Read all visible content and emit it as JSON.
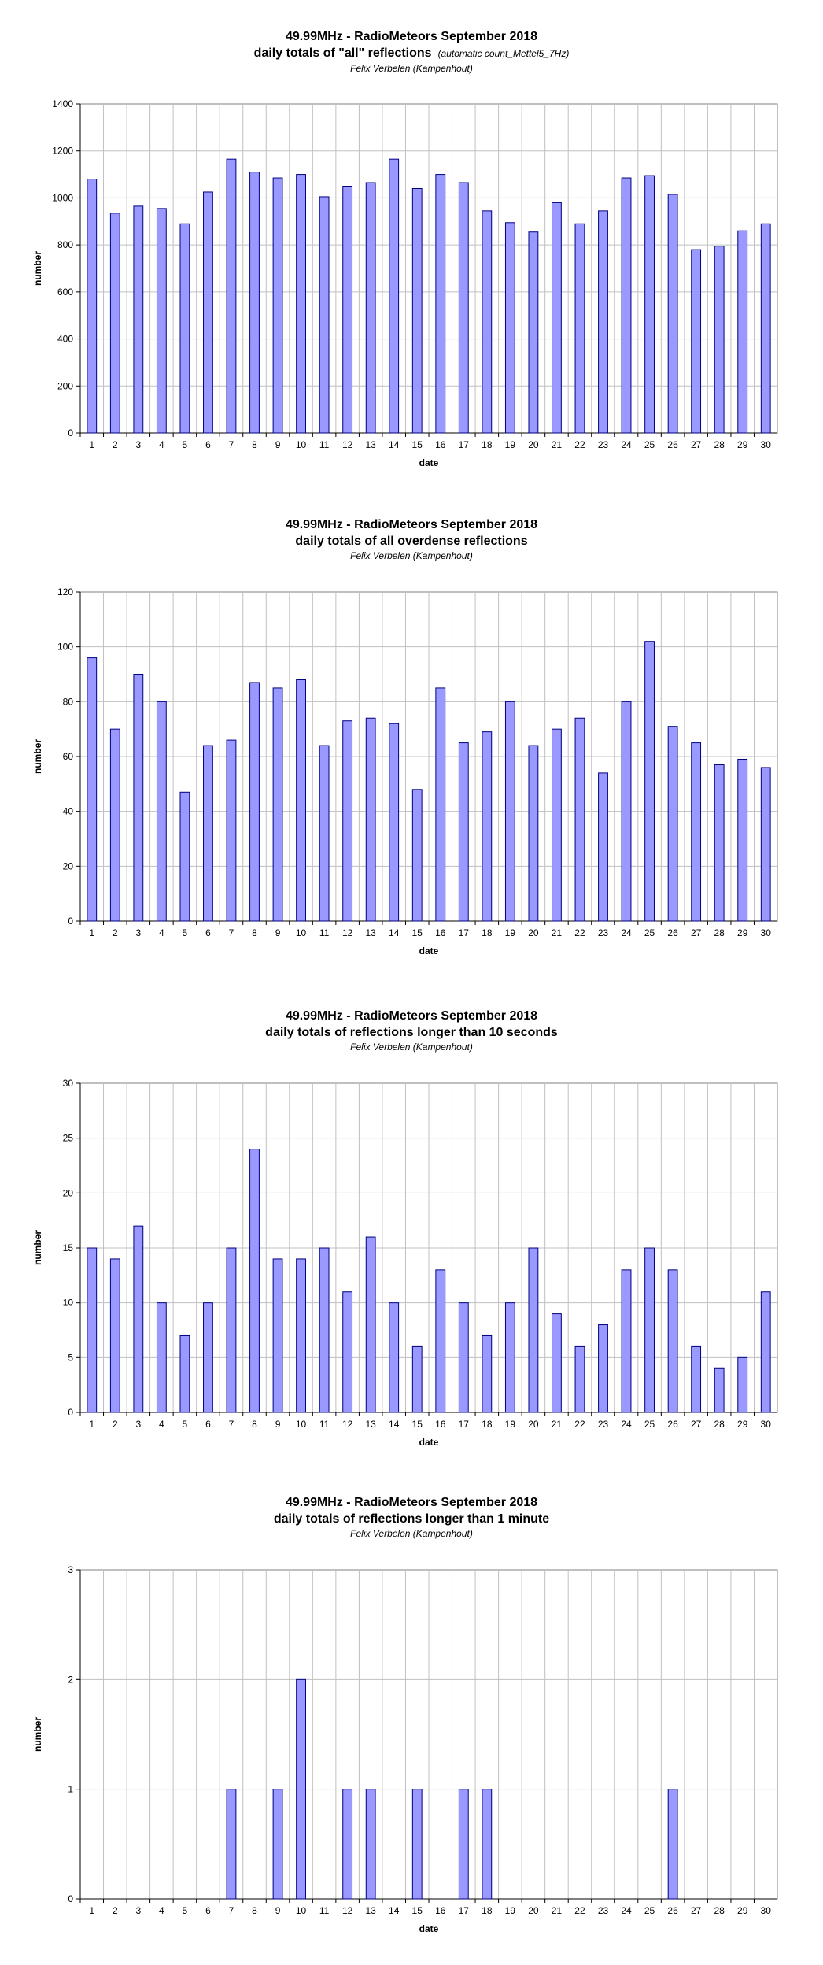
{
  "chart_data": [
    {
      "type": "bar",
      "title": "49.99MHz - RadioMeteors September 2018",
      "subtitle": "daily totals of \"all\" reflections",
      "subtitle_note": "(automatic count_Mettel5_7Hz)",
      "author": "Felix Verbelen (Kampenhout)",
      "xlabel": "date",
      "ylabel": "number",
      "ylim": [
        0,
        1400
      ],
      "yticks": [
        0,
        200,
        400,
        600,
        800,
        1000,
        1200,
        1400
      ],
      "grid": true,
      "categories": [
        "1",
        "2",
        "3",
        "4",
        "5",
        "6",
        "7",
        "8",
        "9",
        "10",
        "11",
        "12",
        "13",
        "14",
        "15",
        "16",
        "17",
        "18",
        "19",
        "20",
        "21",
        "22",
        "23",
        "24",
        "25",
        "26",
        "27",
        "28",
        "29",
        "30"
      ],
      "values": [
        1080,
        935,
        965,
        955,
        890,
        1025,
        1165,
        1110,
        1085,
        1100,
        1005,
        1050,
        1065,
        1165,
        1040,
        1100,
        1065,
        945,
        895,
        855,
        980,
        890,
        945,
        1085,
        1095,
        1015,
        780,
        795,
        860,
        890
      ]
    },
    {
      "type": "bar",
      "title": "49.99MHz - RadioMeteors September 2018",
      "subtitle": "daily totals of all overdense reflections",
      "subtitle_note": "",
      "author": "Felix Verbelen (Kampenhout)",
      "xlabel": "date",
      "ylabel": "number",
      "ylim": [
        0,
        120
      ],
      "yticks": [
        0,
        20,
        40,
        60,
        80,
        100,
        120
      ],
      "grid": true,
      "categories": [
        "1",
        "2",
        "3",
        "4",
        "5",
        "6",
        "7",
        "8",
        "9",
        "10",
        "11",
        "12",
        "13",
        "14",
        "15",
        "16",
        "17",
        "18",
        "19",
        "20",
        "21",
        "22",
        "23",
        "24",
        "25",
        "26",
        "27",
        "28",
        "29",
        "30"
      ],
      "values": [
        96,
        70,
        90,
        80,
        47,
        64,
        66,
        87,
        85,
        88,
        64,
        73,
        74,
        72,
        48,
        85,
        65,
        69,
        80,
        64,
        70,
        74,
        54,
        80,
        102,
        71,
        65,
        57,
        59,
        56
      ]
    },
    {
      "type": "bar",
      "title": "49.99MHz - RadioMeteors September 2018",
      "subtitle": "daily totals of reflections longer than 10 seconds",
      "subtitle_note": "",
      "author": "Felix Verbelen (Kampenhout)",
      "xlabel": "date",
      "ylabel": "number",
      "ylim": [
        0,
        30
      ],
      "yticks": [
        0,
        5,
        10,
        15,
        20,
        25,
        30
      ],
      "grid": true,
      "categories": [
        "1",
        "2",
        "3",
        "4",
        "5",
        "6",
        "7",
        "8",
        "9",
        "10",
        "11",
        "12",
        "13",
        "14",
        "15",
        "16",
        "17",
        "18",
        "19",
        "20",
        "21",
        "22",
        "23",
        "24",
        "25",
        "26",
        "27",
        "28",
        "29",
        "30"
      ],
      "values": [
        15,
        14,
        17,
        10,
        7,
        10,
        15,
        24,
        14,
        14,
        15,
        11,
        16,
        10,
        6,
        13,
        10,
        7,
        10,
        15,
        9,
        6,
        8,
        13,
        15,
        13,
        6,
        4,
        5,
        11
      ]
    },
    {
      "type": "bar",
      "title": "49.99MHz - RadioMeteors September 2018",
      "subtitle": "daily totals of reflections longer than 1 minute",
      "subtitle_note": "",
      "author": "Felix Verbelen (Kampenhout)",
      "xlabel": "date",
      "ylabel": "number",
      "ylim": [
        0,
        3
      ],
      "yticks": [
        0,
        1,
        2,
        3
      ],
      "grid": true,
      "categories": [
        "1",
        "2",
        "3",
        "4",
        "5",
        "6",
        "7",
        "8",
        "9",
        "10",
        "11",
        "12",
        "13",
        "14",
        "15",
        "16",
        "17",
        "18",
        "19",
        "20",
        "21",
        "22",
        "23",
        "24",
        "25",
        "26",
        "27",
        "28",
        "29",
        "30"
      ],
      "values": [
        0,
        0,
        0,
        0,
        0,
        0,
        1,
        0,
        1,
        2,
        0,
        1,
        1,
        0,
        1,
        0,
        1,
        1,
        0,
        0,
        0,
        0,
        0,
        0,
        0,
        1,
        0,
        0,
        0,
        0
      ]
    }
  ],
  "colors": {
    "bar_fill": "#9999ff",
    "bar_stroke": "#000080",
    "grid": "#c0c0c0",
    "axis": "#808080"
  }
}
